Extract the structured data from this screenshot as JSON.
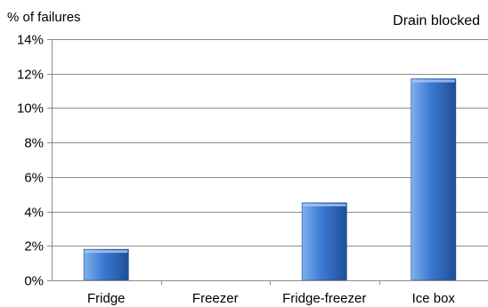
{
  "chart_data": {
    "type": "bar",
    "title": "Drain blocked",
    "ylabel": "% of failures",
    "xlabel": "",
    "categories": [
      "Fridge",
      "Freezer",
      "Fridge-freezer",
      "Ice box"
    ],
    "values": [
      1.8,
      0,
      4.5,
      11.7
    ],
    "ylim": [
      0,
      14
    ],
    "yticks": [
      0,
      2,
      4,
      6,
      8,
      10,
      12,
      14
    ],
    "ytick_labels": [
      "0%",
      "2%",
      "4%",
      "6%",
      "8%",
      "10%",
      "12%",
      "14%"
    ],
    "grid": true,
    "legend": "none",
    "colors": {
      "bar_light": "#7fb0ec",
      "bar_main": "#3a78d0",
      "bar_dark": "#1f4f96",
      "grid": "#8c8c8c",
      "axis": "#8c8c8c"
    }
  }
}
